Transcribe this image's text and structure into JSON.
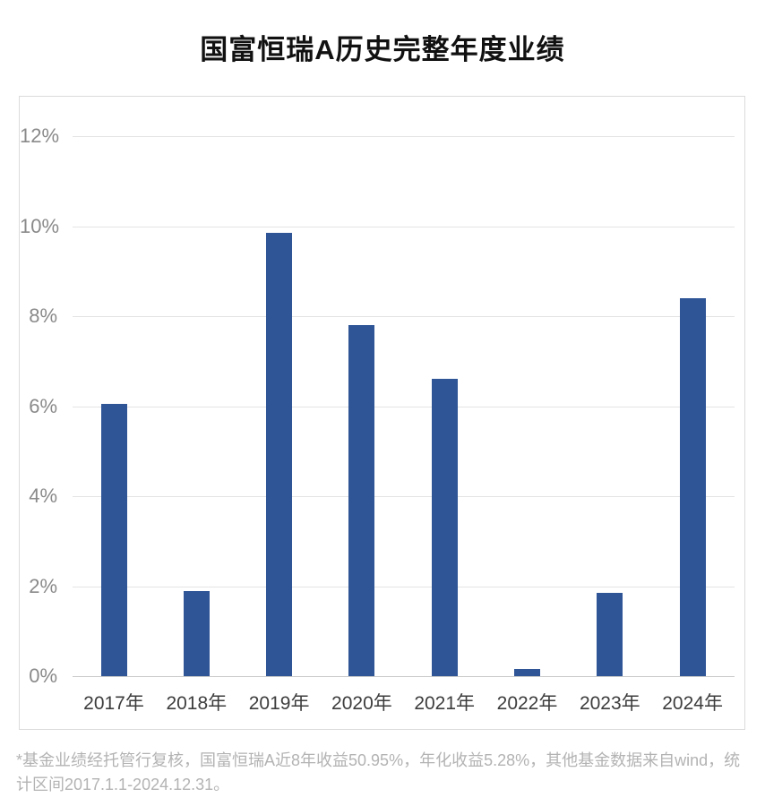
{
  "page_title": "国富恒瑞A历史完整年度业绩",
  "chart_data": {
    "type": "bar",
    "title": "国富恒瑞A历史完整年度业绩",
    "categories": [
      "2017年",
      "2018年",
      "2019年",
      "2020年",
      "2021年",
      "2022年",
      "2023年",
      "2024年"
    ],
    "values": [
      6.05,
      1.9,
      9.85,
      7.8,
      6.6,
      0.15,
      1.85,
      8.4
    ],
    "unit": "%",
    "xlabel": "",
    "ylabel": "",
    "ylim": [
      0,
      12
    ],
    "yticks": [
      0,
      2,
      4,
      6,
      8,
      10,
      12
    ],
    "ytick_labels": [
      "0%",
      "2%",
      "4%",
      "6%",
      "8%",
      "10%",
      "12%"
    ],
    "grid": true,
    "legend_position": "none",
    "bar_color": "#2F5597"
  },
  "footnote": {
    "text": "*基金业绩经托管行复核，国富恒瑞A近8年收益50.95%，年化收益5.28%，其他基金数据来自wind，统计区间2017.1.1-2024.12.31。"
  },
  "colors": {
    "bar": "#2F5597",
    "grid": "#e4e4e4",
    "axis_line": "#c9c9c9",
    "box_border": "#dbdbdb",
    "ytick_text": "#8a8a8a",
    "xtick_text": "#3d3d3d",
    "title_text": "#111111",
    "footnote_text": "#b3b3b3",
    "background": "#ffffff"
  }
}
